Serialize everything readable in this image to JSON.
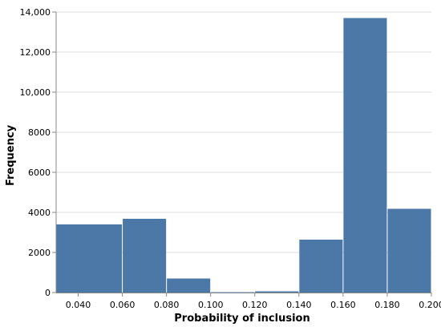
{
  "chart_data": {
    "type": "bar",
    "title": "",
    "xlabel": "Probability of inclusion",
    "ylabel": "Frequency",
    "bins": [
      {
        "x0": 0.03,
        "x1": 0.06,
        "value": 3400
      },
      {
        "x0": 0.06,
        "x1": 0.08,
        "value": 3680
      },
      {
        "x0": 0.08,
        "x1": 0.1,
        "value": 700
      },
      {
        "x0": 0.1,
        "x1": 0.12,
        "value": 20
      },
      {
        "x0": 0.12,
        "x1": 0.14,
        "value": 60
      },
      {
        "x0": 0.14,
        "x1": 0.16,
        "value": 2640
      },
      {
        "x0": 0.16,
        "x1": 0.18,
        "value": 13700
      },
      {
        "x0": 0.18,
        "x1": 0.2,
        "value": 4180
      }
    ],
    "xlim": [
      0.03,
      0.2
    ],
    "ylim": [
      0,
      14000
    ],
    "x_ticks": [
      {
        "value": 0.04,
        "label": "0.040"
      },
      {
        "value": 0.06,
        "label": "0.060"
      },
      {
        "value": 0.08,
        "label": "0.080"
      },
      {
        "value": 0.1,
        "label": "0.100"
      },
      {
        "value": 0.12,
        "label": "0.120"
      },
      {
        "value": 0.14,
        "label": "0.140"
      },
      {
        "value": 0.16,
        "label": "0.160"
      },
      {
        "value": 0.18,
        "label": "0.180"
      },
      {
        "value": 0.2,
        "label": "0.200"
      }
    ],
    "y_ticks": [
      {
        "value": 0,
        "label": "0"
      },
      {
        "value": 2000,
        "label": "2000"
      },
      {
        "value": 4000,
        "label": "4000"
      },
      {
        "value": 6000,
        "label": "6000"
      },
      {
        "value": 8000,
        "label": "8000"
      },
      {
        "value": 10000,
        "label": "10,000"
      },
      {
        "value": 12000,
        "label": "12,000"
      },
      {
        "value": 14000,
        "label": "14,000"
      }
    ],
    "grid": true,
    "legend": "none",
    "bar_color": "#4c78a8",
    "grid_color": "#dddddd",
    "axis_color": "#888888"
  }
}
